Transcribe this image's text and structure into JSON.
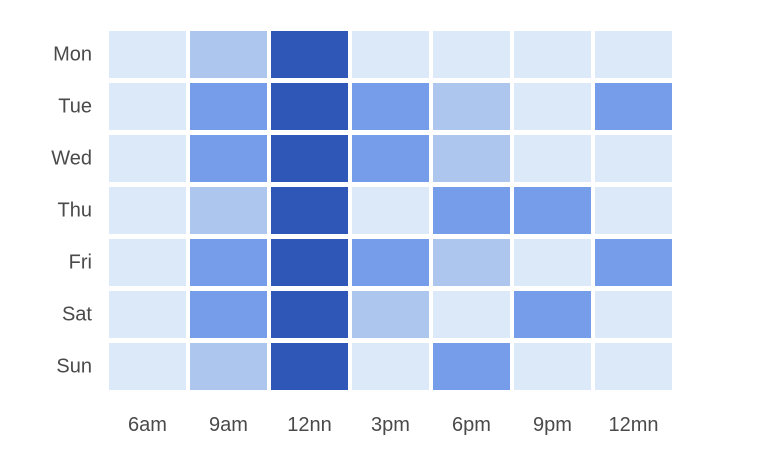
{
  "chart_data": {
    "type": "heatmap",
    "title": "",
    "xlabel": "",
    "ylabel": "",
    "x_categories": [
      "6am",
      "9am",
      "12nn",
      "3pm",
      "6pm",
      "9pm",
      "12mn"
    ],
    "y_categories": [
      "Mon",
      "Tue",
      "Wed",
      "Thu",
      "Fri",
      "Sat",
      "Sun"
    ],
    "levels": [
      [
        1,
        2,
        4,
        1,
        1,
        1,
        1
      ],
      [
        1,
        3,
        4,
        3,
        2,
        1,
        3
      ],
      [
        1,
        3,
        4,
        3,
        2,
        1,
        1
      ],
      [
        1,
        2,
        4,
        1,
        3,
        3,
        1
      ],
      [
        1,
        3,
        4,
        3,
        2,
        1,
        3
      ],
      [
        1,
        3,
        4,
        2,
        1,
        3,
        1
      ],
      [
        1,
        2,
        4,
        1,
        3,
        1,
        1
      ]
    ],
    "level_colors": {
      "1": "#dce9f8",
      "2": "#adc6ee",
      "3": "#759de9",
      "4": "#2f57b7"
    },
    "legend": "none",
    "grid": false
  }
}
